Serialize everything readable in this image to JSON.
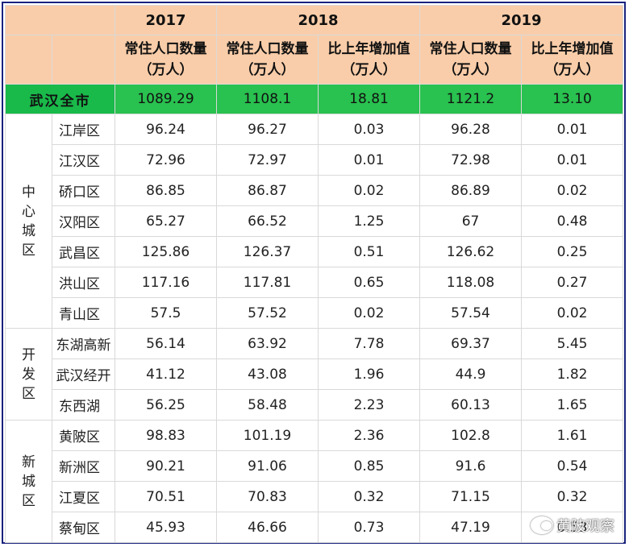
{
  "header": {
    "years": [
      "2017",
      "2018",
      "2019"
    ],
    "sub_population": "常住人口数量（万人）",
    "sub_increase_2018": "比上年增加值（万人）",
    "sub_increase_2019": "比上年增加值（万人）"
  },
  "total": {
    "label": "武汉全市",
    "values": [
      "1089.29",
      "1108.1",
      "18.81",
      "1121.2",
      "13.10"
    ]
  },
  "groups": [
    {
      "label": "中心城区",
      "rows": [
        {
          "name": "江岸区",
          "values": [
            "96.24",
            "96.27",
            "0.03",
            "96.28",
            "0.01"
          ]
        },
        {
          "name": "江汉区",
          "values": [
            "72.96",
            "72.97",
            "0.01",
            "72.98",
            "0.01"
          ]
        },
        {
          "name": "硚口区",
          "values": [
            "86.85",
            "86.87",
            "0.02",
            "86.89",
            "0.02"
          ]
        },
        {
          "name": "汉阳区",
          "values": [
            "65.27",
            "66.52",
            "1.25",
            "67",
            "0.48"
          ]
        },
        {
          "name": "武昌区",
          "values": [
            "125.86",
            "126.37",
            "0.51",
            "126.62",
            "0.25"
          ]
        },
        {
          "name": "洪山区",
          "values": [
            "117.16",
            "117.81",
            "0.65",
            "118.08",
            "0.27"
          ]
        },
        {
          "name": "青山区",
          "values": [
            "57.5",
            "57.52",
            "0.02",
            "57.54",
            "0.02"
          ]
        }
      ]
    },
    {
      "label": "开发区",
      "rows": [
        {
          "name": "东湖高新",
          "values": [
            "56.14",
            "63.92",
            "7.78",
            "69.37",
            "5.45"
          ]
        },
        {
          "name": "武汉经开",
          "values": [
            "41.12",
            "43.08",
            "1.96",
            "44.9",
            "1.82"
          ]
        },
        {
          "name": "东西湖",
          "values": [
            "56.25",
            "58.48",
            "2.23",
            "60.13",
            "1.65"
          ]
        }
      ]
    },
    {
      "label": "新城区",
      "rows": [
        {
          "name": "黄陂区",
          "values": [
            "98.83",
            "101.19",
            "2.36",
            "102.8",
            "1.61"
          ]
        },
        {
          "name": "新洲区",
          "values": [
            "90.21",
            "91.06",
            "0.85",
            "91.6",
            "0.54"
          ]
        },
        {
          "name": "江夏区",
          "values": [
            "70.51",
            "70.83",
            "0.32",
            "71.15",
            "0.32"
          ]
        },
        {
          "name": "蔡甸区",
          "values": [
            "45.93",
            "46.66",
            "0.73",
            "47.19",
            "0.53"
          ]
        }
      ]
    }
  ],
  "watermark": "黄陂观察",
  "colors": {
    "header_bg": "#f9cda9",
    "total_bg": "#19b94a",
    "frame": "#1a237e"
  }
}
